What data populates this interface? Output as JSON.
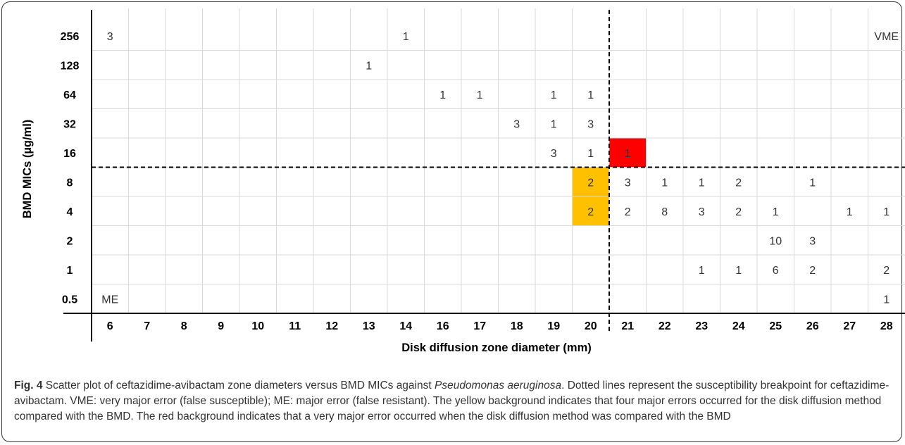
{
  "chart_data": {
    "type": "heatmap",
    "title": "",
    "xlabel": "Disk diffusion zone diameter (mm)",
    "ylabel": "BMD MICs (µg/ml)",
    "x_categories": [
      "6",
      "7",
      "8",
      "9",
      "10",
      "11",
      "12",
      "13",
      "14",
      "16",
      "17",
      "18",
      "19",
      "20",
      "21",
      "22",
      "23",
      "24",
      "25",
      "26",
      "27",
      "28"
    ],
    "y_categories": [
      "256",
      "128",
      "64",
      "32",
      "16",
      "8",
      "4",
      "2",
      "1",
      "0.5"
    ],
    "grid": true,
    "cells": [
      {
        "x": "6",
        "y": "256",
        "count": 3
      },
      {
        "x": "14",
        "y": "256",
        "count": 1
      },
      {
        "x": "13",
        "y": "128",
        "count": 1
      },
      {
        "x": "16",
        "y": "64",
        "count": 1
      },
      {
        "x": "17",
        "y": "64",
        "count": 1
      },
      {
        "x": "19",
        "y": "64",
        "count": 1
      },
      {
        "x": "20",
        "y": "64",
        "count": 1
      },
      {
        "x": "18",
        "y": "32",
        "count": 3
      },
      {
        "x": "19",
        "y": "32",
        "count": 1
      },
      {
        "x": "20",
        "y": "32",
        "count": 3
      },
      {
        "x": "19",
        "y": "16",
        "count": 3
      },
      {
        "x": "20",
        "y": "16",
        "count": 1
      },
      {
        "x": "21",
        "y": "16",
        "count": 1,
        "highlight": "#ff0000"
      },
      {
        "x": "20",
        "y": "8",
        "count": 2,
        "highlight": "#ffc000"
      },
      {
        "x": "21",
        "y": "8",
        "count": 3
      },
      {
        "x": "22",
        "y": "8",
        "count": 1
      },
      {
        "x": "23",
        "y": "8",
        "count": 1
      },
      {
        "x": "24",
        "y": "8",
        "count": 2
      },
      {
        "x": "26",
        "y": "8",
        "count": 1
      },
      {
        "x": "20",
        "y": "4",
        "count": 2,
        "highlight": "#ffc000"
      },
      {
        "x": "21",
        "y": "4",
        "count": 2
      },
      {
        "x": "22",
        "y": "4",
        "count": 8
      },
      {
        "x": "23",
        "y": "4",
        "count": 3
      },
      {
        "x": "24",
        "y": "4",
        "count": 2
      },
      {
        "x": "25",
        "y": "4",
        "count": 1
      },
      {
        "x": "27",
        "y": "4",
        "count": 1
      },
      {
        "x": "28",
        "y": "4",
        "count": 1
      },
      {
        "x": "25",
        "y": "2",
        "count": 10
      },
      {
        "x": "26",
        "y": "2",
        "count": 3
      },
      {
        "x": "23",
        "y": "1",
        "count": 1
      },
      {
        "x": "24",
        "y": "1",
        "count": 1
      },
      {
        "x": "25",
        "y": "1",
        "count": 6
      },
      {
        "x": "26",
        "y": "1",
        "count": 2
      },
      {
        "x": "28",
        "y": "1",
        "count": 2
      },
      {
        "x": "28",
        "y": "0.5",
        "count": 1
      }
    ],
    "annotations": [
      {
        "text": "VME",
        "x": "28",
        "y": "256"
      },
      {
        "text": "ME",
        "x": "6",
        "y": "0.5"
      }
    ],
    "breakpoints": {
      "x_between": [
        "20",
        "21"
      ],
      "y_between": [
        "16",
        "8"
      ],
      "style": "dashed"
    }
  },
  "caption": {
    "label": "Fig. 4",
    "text_before": " Scatter plot of ceftazidime-avibactam zone diameters versus BMD MICs against ",
    "species": "Pseudomonas aeruginosa",
    "text_after": ". Dotted lines represent the susceptibility breakpoint for ceftazidime-avibactam. VME: very major error (false susceptible); ME: major error (false resistant). The yellow background indicates that four major errors occurred for the disk diffusion method compared with the BMD. The red background indicates that a very major error occurred when the disk diffusion method was compared with the BMD"
  },
  "colors": {
    "grid": "#d9d9d9",
    "axis": "#000000",
    "text": "#333333",
    "yellow": "#ffc000",
    "red": "#ff0000"
  }
}
